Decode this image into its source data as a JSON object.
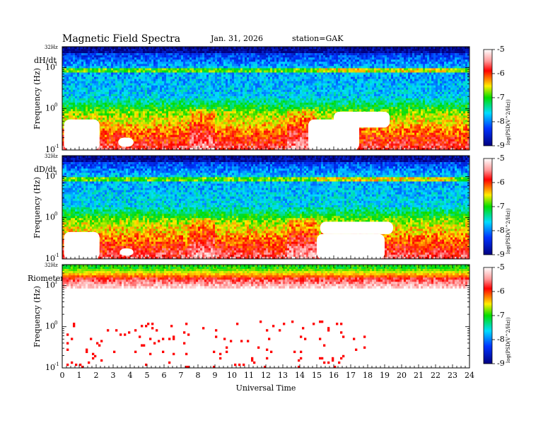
{
  "header": {
    "title": "Magnetic  Field  Spectra",
    "date": "Jan. 31, 2026",
    "station": "station=GAK"
  },
  "chart_data": [
    {
      "type": "heatmap",
      "panel_label": "dH/dt",
      "top_label": "32Hz",
      "ylabel": "Frequency  (Hz)",
      "y_scale": "log",
      "ylim": [
        0.1,
        32
      ],
      "y_tick_labels": [
        {
          "base": "10",
          "exp": "-1",
          "value": 0.1
        },
        {
          "base": "10",
          "exp": "0",
          "value": 1
        },
        {
          "base": "10",
          "exp": "1",
          "value": 10
        }
      ],
      "xlim": [
        0,
        24
      ],
      "colorbar": {
        "label": "log(PSD(V^2/Hz))",
        "ticks": [
          "-5",
          "-6",
          "-7",
          "-8",
          "-9"
        ],
        "range": [
          -9,
          -5
        ]
      },
      "white_regions": [
        {
          "t0": 0.1,
          "t1": 2.2,
          "f0": 0.1,
          "f1": 0.55
        },
        {
          "t0": 3.3,
          "t1": 4.2,
          "f0": 0.12,
          "f1": 0.2
        },
        {
          "t0": 14.5,
          "t1": 17.5,
          "f0": 0.1,
          "f1": 0.55
        },
        {
          "t0": 16.0,
          "t1": 19.3,
          "f0": 0.35,
          "f1": 0.85
        }
      ]
    },
    {
      "type": "heatmap",
      "panel_label": "dD/dt",
      "top_label": "32Hz",
      "ylabel": "Frequency  (Hz)",
      "y_scale": "log",
      "ylim": [
        0.1,
        32
      ],
      "y_tick_labels": [
        {
          "base": "10",
          "exp": "-1",
          "value": 0.1
        },
        {
          "base": "10",
          "exp": "0",
          "value": 1
        },
        {
          "base": "10",
          "exp": "1",
          "value": 10
        }
      ],
      "xlim": [
        0,
        24
      ],
      "colorbar": {
        "label": "log(PSD(V^2/Hz))",
        "ticks": [
          "-5",
          "-6",
          "-7",
          "-8",
          "-9"
        ],
        "range": [
          -9,
          -5
        ]
      },
      "white_regions": [
        {
          "t0": 0.1,
          "t1": 2.2,
          "f0": 0.1,
          "f1": 0.45
        },
        {
          "t0": 3.4,
          "t1": 4.2,
          "f0": 0.12,
          "f1": 0.18
        },
        {
          "t0": 15.0,
          "t1": 19.0,
          "f0": 0.1,
          "f1": 0.4
        },
        {
          "t0": 15.2,
          "t1": 19.5,
          "f0": 0.4,
          "f1": 0.8
        }
      ]
    },
    {
      "type": "heatmap",
      "panel_label": "Riometer",
      "top_label": "32Hz",
      "ylabel": "Frequency  (Hz)",
      "y_scale": "log",
      "ylim": [
        0.1,
        32
      ],
      "y_tick_labels": [
        {
          "base": "10",
          "exp": "-1",
          "value": 0.1
        },
        {
          "base": "10",
          "exp": "0",
          "value": 1
        },
        {
          "base": "10",
          "exp": "1",
          "value": 10
        }
      ],
      "xlim": [
        0,
        24
      ],
      "colorbar": {
        "label": "log(PSD(V^2/Hz))",
        "ticks": [
          "-5",
          "-6",
          "-7",
          "-8",
          "-9"
        ],
        "range": [
          -9,
          -5
        ]
      },
      "x_ticks": [
        "0",
        "1",
        "2",
        "3",
        "4",
        "5",
        "6",
        "7",
        "8",
        "9",
        "10",
        "11",
        "12",
        "13",
        "14",
        "15",
        "16",
        "17",
        "18",
        "19",
        "20",
        "21",
        "22",
        "23",
        "24"
      ],
      "xlabel": "Universal  Time"
    }
  ]
}
